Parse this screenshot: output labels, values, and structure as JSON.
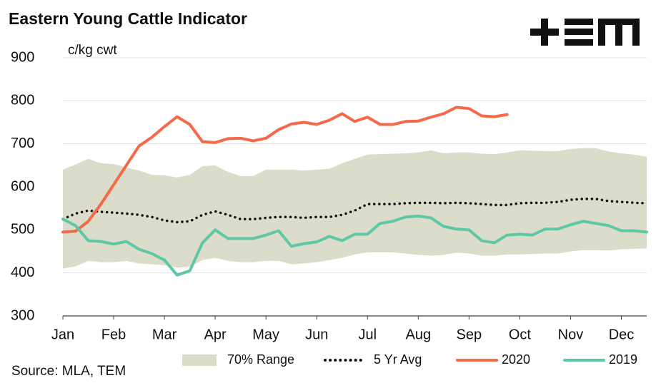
{
  "chart_data": {
    "type": "line",
    "title": "Eastern Young Cattle Indicator",
    "y_label": "c/kg cwt",
    "source": "Source: MLA, TEM",
    "xlim": [
      0,
      11.5
    ],
    "xticks": [
      {
        "value": 0,
        "label": "Jan"
      },
      {
        "value": 1,
        "label": "Feb"
      },
      {
        "value": 2,
        "label": "Mar"
      },
      {
        "value": 3,
        "label": "Apr"
      },
      {
        "value": 4,
        "label": "May"
      },
      {
        "value": 5,
        "label": "Jun"
      },
      {
        "value": 6,
        "label": "Jul"
      },
      {
        "value": 7,
        "label": "Aug"
      },
      {
        "value": 8,
        "label": "Sep"
      },
      {
        "value": 9,
        "label": "Oct"
      },
      {
        "value": 10,
        "label": "Nov"
      },
      {
        "value": 11,
        "label": "Dec"
      }
    ],
    "ylim": [
      300,
      900
    ],
    "yticks": [
      300,
      400,
      500,
      600,
      700,
      800,
      900
    ],
    "grid": true,
    "x": [
      0,
      0.25,
      0.5,
      0.75,
      1,
      1.25,
      1.5,
      1.75,
      2,
      2.25,
      2.5,
      2.75,
      3,
      3.25,
      3.5,
      3.75,
      4,
      4.25,
      4.5,
      4.75,
      5,
      5.25,
      5.5,
      5.75,
      6,
      6.25,
      6.5,
      6.75,
      7,
      7.25,
      7.5,
      7.75,
      8,
      8.25,
      8.5,
      8.75,
      9,
      9.25,
      9.5,
      9.75,
      10,
      10.25,
      10.5,
      10.75,
      11,
      11.25,
      11.5
    ],
    "series": [
      {
        "name": "70% Range",
        "kind": "band",
        "color": "#dcdccb",
        "high": [
          640,
          652,
          665,
          655,
          653,
          645,
          638,
          628,
          627,
          622,
          628,
          648,
          650,
          635,
          625,
          625,
          640,
          640,
          640,
          638,
          640,
          642,
          655,
          665,
          675,
          676,
          677,
          678,
          680,
          685,
          678,
          680,
          680,
          677,
          676,
          680,
          685,
          684,
          683,
          683,
          688,
          690,
          690,
          682,
          678,
          675,
          670
        ],
        "low": [
          410,
          415,
          428,
          425,
          425,
          428,
          422,
          420,
          418,
          412,
          415,
          430,
          435,
          428,
          425,
          425,
          428,
          428,
          420,
          422,
          425,
          430,
          435,
          443,
          448,
          448,
          448,
          445,
          442,
          440,
          442,
          447,
          445,
          440,
          440,
          443,
          443,
          444,
          445,
          445,
          450,
          453,
          453,
          452,
          455,
          456,
          457
        ]
      },
      {
        "name": "5 Yr Avg",
        "kind": "dotted",
        "color": "#111111",
        "values": [
          525,
          538,
          545,
          542,
          540,
          538,
          535,
          530,
          522,
          518,
          520,
          535,
          543,
          535,
          525,
          525,
          528,
          530,
          530,
          528,
          530,
          530,
          535,
          545,
          560,
          560,
          560,
          562,
          563,
          563,
          562,
          563,
          562,
          560,
          558,
          558,
          562,
          563,
          563,
          565,
          570,
          572,
          572,
          567,
          565,
          563,
          562
        ]
      },
      {
        "name": "2020",
        "kind": "solid",
        "color": "#f4694a",
        "values": [
          495,
          497,
          520,
          560,
          605,
          650,
          695,
          715,
          740,
          763,
          745,
          705,
          703,
          712,
          713,
          707,
          713,
          733,
          746,
          750,
          745,
          755,
          770,
          752,
          762,
          745,
          745,
          752,
          753,
          762,
          770,
          785,
          782,
          765,
          763,
          768,
          null,
          null,
          null,
          null,
          null,
          null,
          null,
          null,
          null,
          null,
          null
        ]
      },
      {
        "name": "2019",
        "kind": "solid",
        "color": "#5ec8a4",
        "values": [
          525,
          510,
          475,
          473,
          467,
          473,
          455,
          445,
          430,
          395,
          405,
          470,
          500,
          480,
          480,
          480,
          488,
          498,
          462,
          468,
          472,
          485,
          475,
          490,
          490,
          515,
          520,
          530,
          532,
          528,
          508,
          502,
          500,
          475,
          470,
          488,
          490,
          488,
          502,
          502,
          512,
          520,
          515,
          510,
          498,
          498,
          495
        ]
      }
    ]
  }
}
